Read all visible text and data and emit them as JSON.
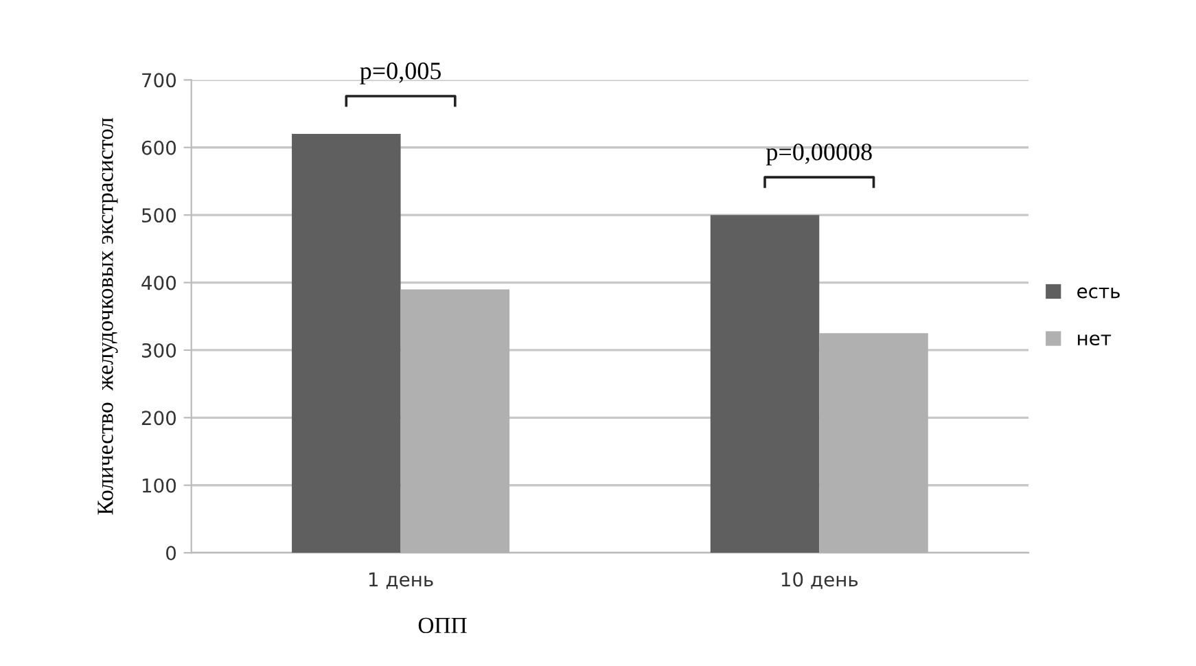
{
  "chart_data": {
    "type": "bar",
    "xlabel": "ОПП",
    "ylabel": "Количество  желудочковых экстрасистол",
    "categories": [
      "1 день",
      "10 день"
    ],
    "series": [
      {
        "name": "есть",
        "color": "#5f5f5f",
        "values": [
          620,
          500
        ]
      },
      {
        "name": "нет",
        "color": "#b0b0b0",
        "values": [
          390,
          325
        ]
      }
    ],
    "ylim": [
      0,
      700
    ],
    "yticks": [
      0,
      100,
      200,
      300,
      400,
      500,
      600,
      700
    ],
    "grid": "y",
    "legend": "right",
    "annotations": [
      "p=0,005",
      "p=0,00008"
    ]
  }
}
